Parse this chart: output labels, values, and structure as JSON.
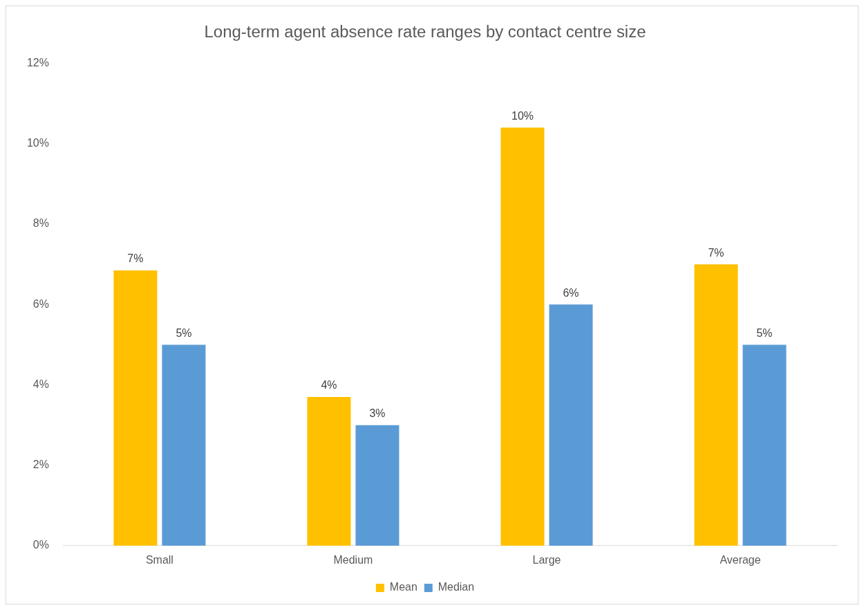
{
  "chart_data": {
    "type": "bar",
    "title": "Long-term agent absence rate ranges by contact centre size",
    "categories": [
      "Small",
      "Medium",
      "Large",
      "Average"
    ],
    "series": [
      {
        "name": "Mean",
        "color": "#ffc000",
        "values": [
          6.85,
          3.7,
          10.4,
          7.0
        ],
        "value_labels": [
          "7%",
          "4%",
          "10%",
          "7%"
        ]
      },
      {
        "name": "Median",
        "color": "#5b9bd5",
        "values": [
          5,
          3,
          6,
          5
        ],
        "value_labels": [
          "5%",
          "3%",
          "6%",
          "5%"
        ]
      }
    ],
    "ylim": [
      0,
      12
    ],
    "yticks": [
      {
        "value": 0,
        "label": "0%"
      },
      {
        "value": 2,
        "label": "2%"
      },
      {
        "value": 4,
        "label": "4%"
      },
      {
        "value": 6,
        "label": "6%"
      },
      {
        "value": 8,
        "label": "8%"
      },
      {
        "value": 10,
        "label": "10%"
      },
      {
        "value": 12,
        "label": "12%"
      }
    ],
    "grid": false,
    "legend": "bottom"
  }
}
